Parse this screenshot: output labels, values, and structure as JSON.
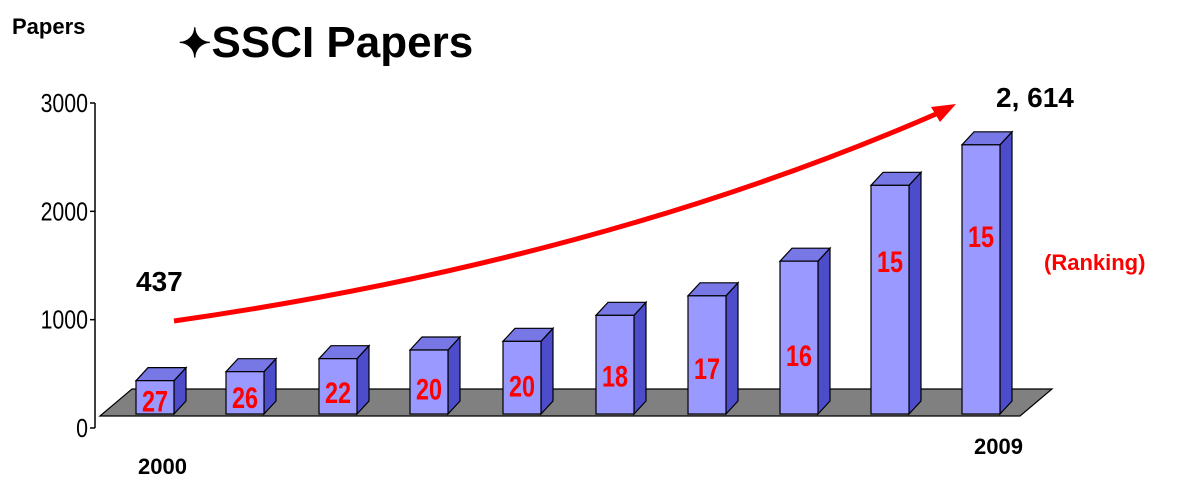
{
  "chart_data": {
    "type": "bar",
    "title": "SSCI Papers",
    "title_icon": "four-pointed-star-icon",
    "ylabel": "Papers",
    "ylim": [
      0,
      3000
    ],
    "yticks": [
      "0",
      "1000",
      "2000",
      "3000"
    ],
    "x_first_label": "2000",
    "x_last_label": "2009",
    "values": [
      437,
      520,
      640,
      720,
      800,
      1040,
      1220,
      1540,
      2240,
      2614
    ],
    "rankings": [
      "27",
      "26",
      "22",
      "20",
      "20",
      "18",
      "17",
      "16",
      "15",
      "15"
    ],
    "ranking_label": "(Ranking)",
    "start_value_label": "437",
    "end_value_label": "2, 614",
    "trend_arrow": true,
    "colors": {
      "bar_front": "#9999ff",
      "bar_top": "#7777e6",
      "bar_side": "#4d4dcc",
      "floor": "#808080",
      "ranking_text": "#ff0000",
      "trend_arrow": "#ff0000"
    }
  }
}
